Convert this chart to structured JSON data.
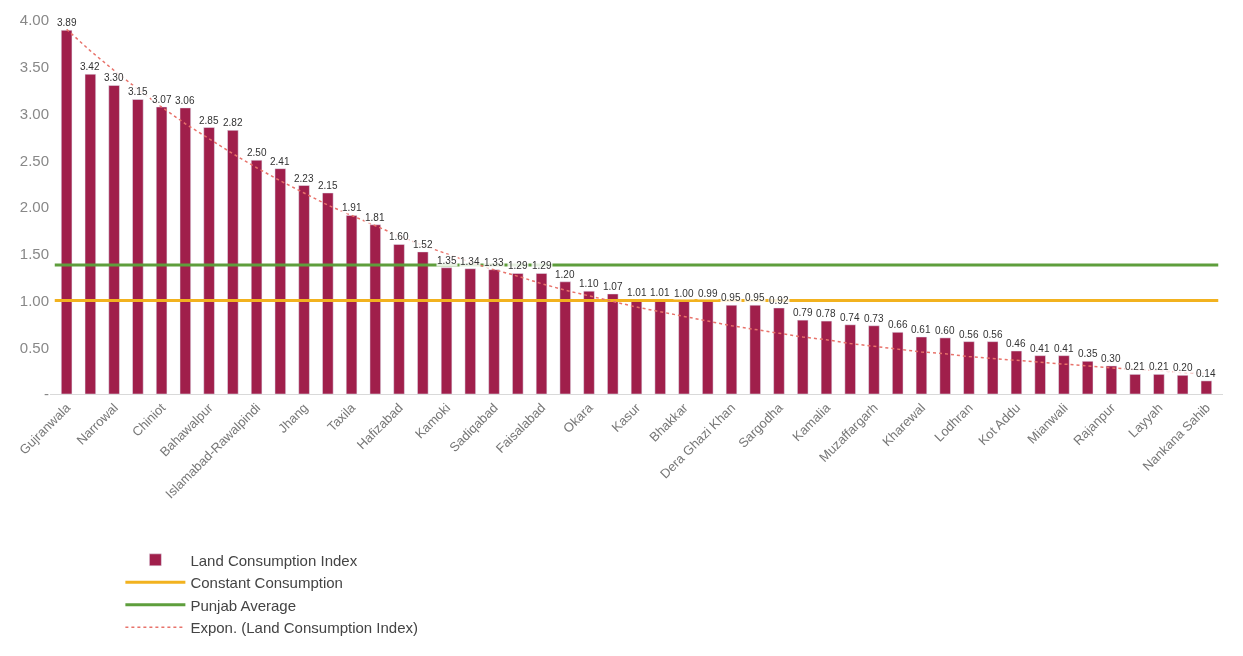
{
  "chart_data": {
    "type": "bar",
    "categories": [
      "Gujranwala",
      null,
      "Narrowal",
      null,
      "Chiniot",
      null,
      "Bahawalpur",
      null,
      "Islamabad-Rawalpindi",
      null,
      "Jhang",
      null,
      "Taxila",
      null,
      "Hafizabad",
      null,
      "Kamoki",
      null,
      "Sadiqabad",
      null,
      "Faisalabad",
      null,
      "Okara",
      null,
      "Kasur",
      null,
      "Bhakkar",
      null,
      "Dera Ghazi Khan",
      null,
      "Sargodha",
      null,
      "Kamalia",
      null,
      "Muzaffargarh",
      null,
      "Kharewal",
      null,
      "Lodhran",
      null,
      "Kot Addu",
      null,
      "Mianwali",
      null,
      "Rajanpur",
      null,
      "Layyah",
      null,
      "Nankana Sahib"
    ],
    "series": [
      {
        "name": "Land Consumption Index",
        "color": "#a01f4b",
        "values": [
          3.89,
          3.42,
          3.3,
          3.15,
          3.07,
          3.06,
          2.85,
          2.82,
          2.5,
          2.41,
          2.23,
          2.15,
          1.91,
          1.81,
          1.6,
          1.52,
          1.35,
          1.34,
          1.33,
          1.29,
          1.29,
          1.2,
          1.1,
          1.07,
          1.01,
          1.01,
          1.0,
          0.99,
          0.95,
          0.95,
          0.92,
          0.79,
          0.78,
          0.74,
          0.73,
          0.66,
          0.61,
          0.6,
          0.56,
          0.56,
          0.46,
          0.41,
          0.41,
          0.35,
          0.3,
          0.21,
          0.21,
          0.2,
          0.14
        ],
        "value_labels": [
          "3.89",
          "3.42",
          "3.30",
          "3.15",
          "3.07",
          "3.06",
          "2.85",
          "2.82",
          "2.50",
          "2.41",
          "2.23",
          "2.15",
          "1.91",
          "1.81",
          "1.60",
          "1.52",
          "1.35",
          "1.34",
          "1.33",
          "1.29",
          "1.29",
          "1.20",
          "1.10",
          "1.07",
          "1.01",
          "1.01",
          "1.00",
          "0.99",
          "0.95",
          "0.95",
          "0.92",
          "0.79",
          "0.78",
          "0.74",
          "0.73",
          "0.66",
          "0.61",
          "0.60",
          "0.56",
          "0.56",
          "0.46",
          "0.41",
          "0.41",
          "0.35",
          "0.30",
          "0.21",
          "0.21",
          "0.20",
          "0.14"
        ]
      },
      {
        "name": "Expon. (Land Consumption Index)",
        "type": "line",
        "line_style": "dotted",
        "color": "#e8736b",
        "values": [
          3.9,
          3.67,
          3.46,
          3.26,
          3.07,
          2.89,
          2.73,
          2.57,
          2.42,
          2.28,
          2.15,
          2.02,
          1.91,
          1.8,
          1.69,
          1.59,
          1.5,
          1.41,
          1.33,
          1.26,
          1.18,
          1.11,
          1.05,
          0.99,
          0.93,
          0.88,
          0.83,
          0.78,
          0.73,
          0.69,
          0.65,
          0.61,
          0.58,
          0.54,
          0.51,
          0.48,
          0.45,
          0.43,
          0.4,
          0.38,
          0.36,
          0.34,
          0.32,
          0.3,
          0.28,
          0.26,
          0.25,
          0.23,
          0.22
        ]
      }
    ],
    "ref_lines": [
      {
        "axis": "y",
        "value": 1.0,
        "label": "Constant Consumption",
        "color": "#f2b21f"
      },
      {
        "axis": "y",
        "value": 1.38,
        "label": "Punjab Average",
        "color": "#5e9e3c"
      }
    ],
    "ylim": [
      0,
      4.0
    ],
    "yticks": [
      {
        "value": 0,
        "label": "-"
      },
      {
        "value": 0.5,
        "label": "0.50"
      },
      {
        "value": 1,
        "label": "1.00"
      },
      {
        "value": 1.5,
        "label": "1.50"
      },
      {
        "value": 2,
        "label": "2.00"
      },
      {
        "value": 2.5,
        "label": "2.50"
      },
      {
        "value": 3,
        "label": "3.00"
      },
      {
        "value": 3.5,
        "label": "3.50"
      },
      {
        "value": 4,
        "label": "4.00"
      }
    ],
    "grid": false,
    "legend": "bottom"
  }
}
